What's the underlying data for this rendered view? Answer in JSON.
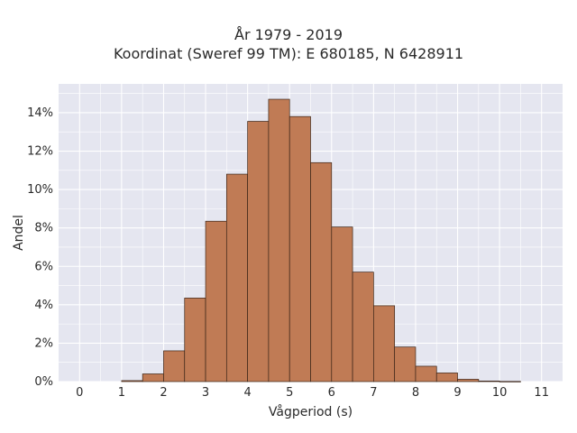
{
  "chart_data": {
    "type": "bar",
    "title_lines": [
      "År 1979 - 2019",
      "Koordinat (Sweref 99 TM): E 680185, N 6428911"
    ],
    "xlabel": "Vågperiod (s)",
    "ylabel": "Andel",
    "xlim": [
      -0.5,
      11.5
    ],
    "ylim": [
      0,
      15.5
    ],
    "x_ticks": [
      "0",
      "1",
      "2",
      "3",
      "4",
      "5",
      "6",
      "7",
      "8",
      "9",
      "10",
      "11"
    ],
    "y_ticks": [
      "0%",
      "2%",
      "4%",
      "6%",
      "8%",
      "10%",
      "12%",
      "14%"
    ],
    "bin_width": 0.5,
    "bin_starts": [
      1.0,
      1.5,
      2.0,
      2.5,
      3.0,
      3.5,
      4.0,
      4.5,
      5.0,
      5.5,
      6.0,
      6.5,
      7.0,
      7.5,
      8.0,
      8.5,
      9.0,
      9.5,
      10.0
    ],
    "values": [
      0.05,
      0.4,
      1.6,
      4.35,
      8.35,
      10.8,
      13.55,
      14.7,
      13.8,
      11.4,
      8.05,
      5.7,
      3.95,
      1.8,
      0.8,
      0.45,
      0.12,
      0.03,
      0.01
    ],
    "grid": true,
    "colors": {
      "bar_fill": "#c07b55",
      "bar_stroke": "#3a2418",
      "plot_bg": "#e5e6f0",
      "grid": "#ffffff"
    }
  }
}
